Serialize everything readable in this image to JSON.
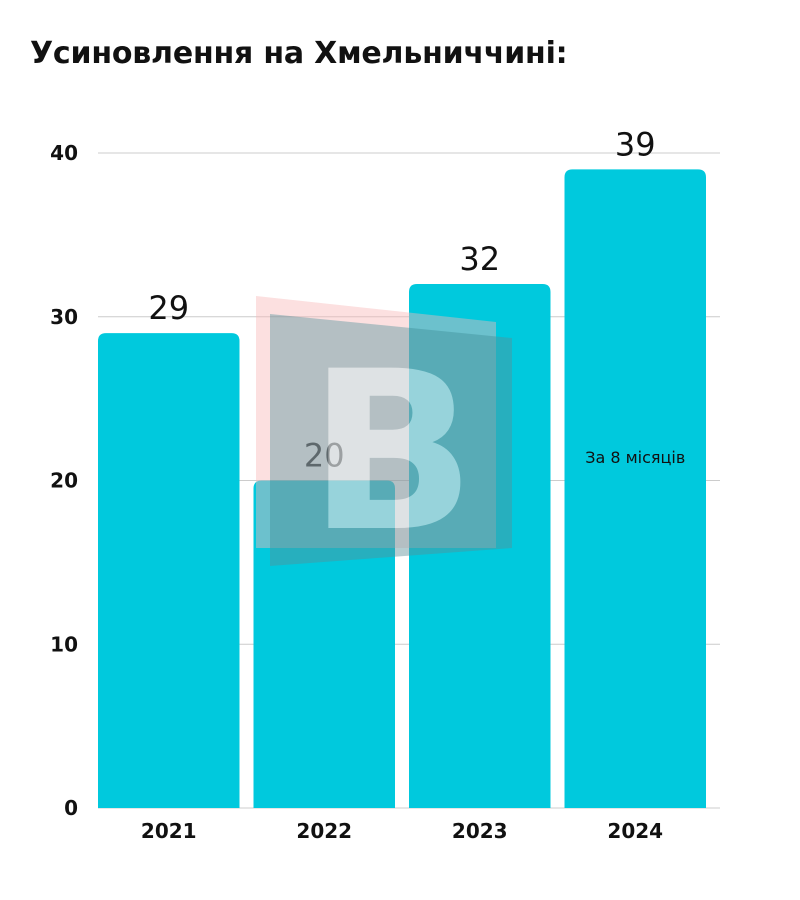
{
  "chart_data": {
    "type": "bar",
    "title": "Усиновлення на Хмельниччині:",
    "categories": [
      "2021",
      "2022",
      "2023",
      "2024"
    ],
    "values": [
      29,
      20,
      32,
      39
    ],
    "data_labels": [
      "29",
      "20",
      "32",
      "39"
    ],
    "ylim": [
      0,
      40
    ],
    "yticks": [
      0,
      10,
      20,
      30,
      40
    ],
    "ytick_labels": [
      "0",
      "10",
      "20",
      "30",
      "40"
    ],
    "grid": true,
    "bar_color": "#00C9DD",
    "grid_color": "#cccccc",
    "annotations": [
      {
        "category": "2024",
        "text": "За 8 місяців"
      }
    ],
    "watermark": {
      "type": "logo",
      "letter": "В"
    }
  }
}
